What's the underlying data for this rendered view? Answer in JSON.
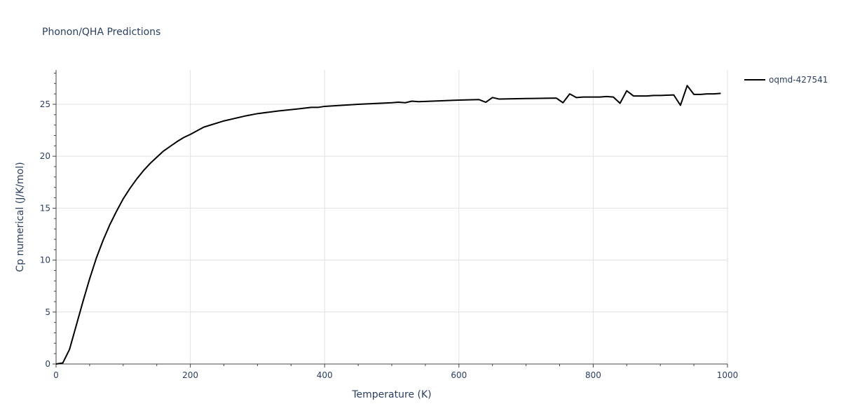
{
  "chart_data": {
    "type": "line",
    "title": "Phonon/QHA Predictions",
    "xlabel": "Temperature (K)",
    "ylabel": "Cp numerical (J/K/mol)",
    "xlim": [
      0,
      1000
    ],
    "ylim": [
      0,
      28.3
    ],
    "x_ticks": [
      0,
      200,
      400,
      600,
      800,
      1000
    ],
    "x_tick_labels": [
      "0",
      "200",
      "400",
      "600",
      "800",
      "1000"
    ],
    "y_ticks": [
      0,
      5,
      10,
      15,
      20,
      25
    ],
    "y_tick_labels": [
      "0",
      "5",
      "10",
      "15",
      "20",
      "25"
    ],
    "grid": true,
    "legend_position": "top-right",
    "colors": {
      "series": "#000000",
      "text": "#2a3f5f",
      "grid": "#e1e1e1"
    },
    "series": [
      {
        "name": "oqmd-427541",
        "x": [
          0,
          10,
          20,
          30,
          40,
          50,
          60,
          70,
          80,
          90,
          100,
          110,
          120,
          130,
          140,
          150,
          160,
          170,
          180,
          190,
          200,
          220,
          250,
          280,
          300,
          330,
          360,
          380,
          390,
          400,
          450,
          500,
          510,
          520,
          530,
          540,
          600,
          630,
          640,
          650,
          660,
          700,
          745,
          755,
          765,
          775,
          785,
          800,
          810,
          820,
          830,
          840,
          850,
          860,
          870,
          880,
          890,
          900,
          920,
          930,
          940,
          950,
          960,
          970,
          980,
          990
        ],
        "y": [
          0,
          0.1,
          1.4,
          3.7,
          6.0,
          8.2,
          10.2,
          11.9,
          13.4,
          14.7,
          15.9,
          16.9,
          17.8,
          18.6,
          19.3,
          19.9,
          20.5,
          20.95,
          21.4,
          21.8,
          22.1,
          22.8,
          23.4,
          23.85,
          24.1,
          24.35,
          24.55,
          24.7,
          24.7,
          24.8,
          25.0,
          25.15,
          25.2,
          25.15,
          25.3,
          25.25,
          25.4,
          25.45,
          25.2,
          25.65,
          25.5,
          25.55,
          25.6,
          25.15,
          26.0,
          25.65,
          25.7,
          25.7,
          25.7,
          25.75,
          25.7,
          25.1,
          26.3,
          25.8,
          25.8,
          25.8,
          25.85,
          25.85,
          25.9,
          24.9,
          26.8,
          25.95,
          25.95,
          26.0,
          26.0,
          26.05
        ]
      }
    ]
  }
}
